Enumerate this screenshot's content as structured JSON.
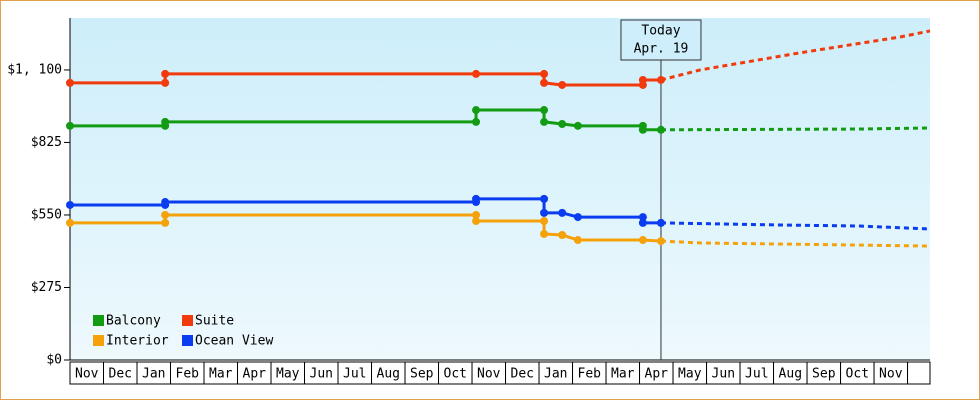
{
  "chart_data": {
    "type": "line",
    "xlim": [
      0,
      25.67
    ],
    "ylim": [
      0,
      1297
    ],
    "yticks": [
      {
        "value": 0,
        "label": "$0"
      },
      {
        "value": 275,
        "label": "$275"
      },
      {
        "value": 550,
        "label": "$550"
      },
      {
        "value": 825,
        "label": "$825"
      },
      {
        "value": 1100,
        "label": "$1, 100"
      }
    ],
    "months": [
      "Nov",
      "Dec",
      "Jan",
      "Feb",
      "Mar",
      "Apr",
      "May",
      "Jun",
      "Jul",
      "Aug",
      "Sep",
      "Oct",
      "Nov",
      "Dec",
      "Jan",
      "Feb",
      "Mar",
      "Apr",
      "May",
      "Jun",
      "Jul",
      "Aug",
      "Sep",
      "Oct",
      "Nov"
    ],
    "annotations": [
      {
        "x": 17.64,
        "text": [
          "Today",
          "Apr. 19"
        ]
      }
    ],
    "series": [
      {
        "name": "Balcony",
        "color": "#139c13",
        "x": [
          0,
          2.84,
          2.84,
          12.12,
          12.12,
          14.15,
          14.15,
          14.69,
          15.16,
          17.1,
          17.1,
          17.64
        ],
        "values": [
          888,
          888,
          903,
          903,
          948,
          948,
          903,
          895,
          888,
          888,
          873,
          873
        ],
        "forecast": {
          "x": [
            17.64,
            23.58,
            25.67
          ],
          "values": [
            873,
            876,
            880
          ]
        }
      },
      {
        "name": "Suite",
        "color": "#f23b0c",
        "x": [
          0,
          2.84,
          2.84,
          12.12,
          14.15,
          14.15,
          14.69,
          17.1,
          17.1,
          17.64
        ],
        "values": [
          1051,
          1051,
          1085,
          1085,
          1085,
          1051,
          1043,
          1043,
          1062,
          1062
        ],
        "forecast": {
          "x": [
            17.64,
            18.81,
            21.79,
            24.78,
            25.67
          ],
          "values": [
            1062,
            1100,
            1165,
            1225,
            1248
          ]
        }
      },
      {
        "name": "Interior",
        "color": "#f5a10a",
        "x": [
          0,
          2.84,
          2.84,
          12.12,
          12.12,
          14.15,
          14.15,
          14.69,
          15.16,
          17.1,
          17.64
        ],
        "values": [
          520,
          520,
          550,
          550,
          527,
          527,
          478,
          474,
          455,
          455,
          451
        ],
        "forecast": {
          "x": [
            17.64,
            18.81,
            25.67
          ],
          "values": [
            451,
            444,
            432
          ]
        }
      },
      {
        "name": "Ocean View",
        "color": "#0a3cf0",
        "x": [
          0,
          2.84,
          2.84,
          12.12,
          12.12,
          14.15,
          14.15,
          14.69,
          15.16,
          17.1,
          17.1,
          17.64
        ],
        "values": [
          588,
          588,
          599,
          599,
          611,
          611,
          558,
          558,
          542,
          542,
          520,
          520
        ],
        "forecast": {
          "x": [
            17.64,
            21.19,
            23.58,
            25.67
          ],
          "values": [
            520,
            512,
            508,
            497
          ]
        }
      }
    ]
  }
}
